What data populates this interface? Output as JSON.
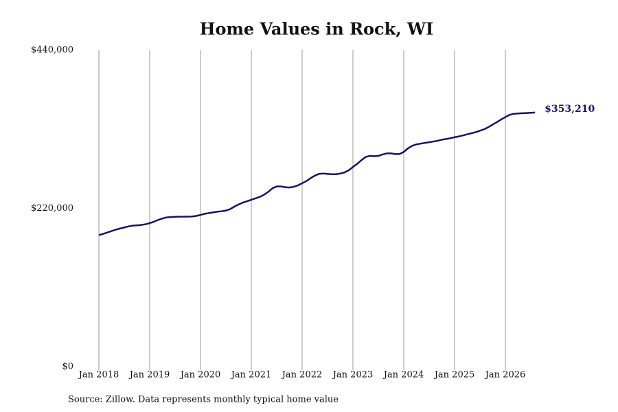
{
  "chart_data": {
    "type": "line",
    "title": "Home Values in Rock, WI",
    "source": "Source: Zillow. Data represents monthly typical home value",
    "color": "#14145e",
    "categories": [
      "Jan 2018",
      null,
      null,
      null,
      null,
      null,
      null,
      null,
      null,
      null,
      null,
      null,
      "Jan 2019",
      null,
      null,
      null,
      null,
      null,
      null,
      null,
      null,
      null,
      null,
      null,
      "Jan 2020",
      null,
      null,
      null,
      null,
      null,
      null,
      null,
      null,
      null,
      null,
      null,
      "Jan 2021",
      null,
      null,
      null,
      null,
      null,
      null,
      null,
      null,
      null,
      null,
      null,
      "Jan 2022",
      null,
      null,
      null,
      null,
      null,
      null,
      null,
      null,
      null,
      null,
      null,
      "Jan 2023",
      null,
      null,
      null,
      null,
      null,
      null,
      null,
      null,
      null,
      null,
      null,
      "Jan 2024",
      null,
      null,
      null,
      null,
      null,
      null,
      null,
      null,
      null,
      null,
      null,
      "Jan 2025",
      null,
      null,
      null,
      null,
      null,
      null,
      null,
      null,
      null,
      null,
      null,
      "Jan 2026",
      null,
      null,
      null,
      null,
      null,
      null,
      null
    ],
    "values": [
      183000,
      184500,
      186500,
      188500,
      190500,
      192000,
      193500,
      195000,
      196000,
      196500,
      197000,
      198000,
      199500,
      201500,
      204000,
      206000,
      207500,
      208000,
      208300,
      208500,
      208600,
      208600,
      208800,
      209500,
      211000,
      212500,
      213500,
      214500,
      215500,
      216000,
      217000,
      219000,
      222500,
      225500,
      228000,
      230000,
      232000,
      234000,
      236000,
      239000,
      243000,
      248000,
      250500,
      250500,
      249500,
      249000,
      250000,
      252000,
      255000,
      258000,
      262000,
      265500,
      268000,
      268500,
      268000,
      267500,
      267500,
      268500,
      270000,
      273000,
      277500,
      282000,
      287000,
      291500,
      293000,
      292500,
      293000,
      295000,
      296500,
      296500,
      295500,
      295500,
      298500,
      303500,
      307000,
      309000,
      310000,
      311000,
      312000,
      313000,
      314000,
      315500,
      316500,
      317500,
      319000,
      320000,
      321500,
      323000,
      324500,
      326000,
      328000,
      330000,
      333000,
      336500,
      340000,
      343500,
      347000,
      350000,
      351500,
      352000,
      352300,
      352600,
      352900,
      353210
    ],
    "value_labels": [
      null,
      null,
      null,
      null,
      null,
      null,
      null,
      null,
      null,
      null,
      null,
      null,
      null,
      null,
      null,
      null,
      null,
      null,
      null,
      null,
      null,
      null,
      null,
      null,
      null,
      null,
      null,
      null,
      null,
      null,
      null,
      null,
      null,
      null,
      null,
      null,
      null,
      null,
      null,
      null,
      null,
      null,
      null,
      null,
      null,
      null,
      null,
      null,
      null,
      null,
      null,
      null,
      null,
      null,
      null,
      null,
      null,
      null,
      null,
      null,
      null,
      null,
      null,
      null,
      null,
      null,
      null,
      null,
      null,
      null,
      null,
      null,
      null,
      null,
      null,
      null,
      null,
      null,
      null,
      null,
      null,
      null,
      null,
      null,
      null,
      null,
      null,
      null,
      null,
      null,
      null,
      null,
      null,
      null,
      null,
      null,
      null,
      null,
      null,
      null,
      null,
      null,
      null,
      "$353,210"
    ],
    "ylim": [
      0,
      440000
    ],
    "yticks": [
      {
        "value": 0,
        "label": "$0"
      },
      {
        "value": 220000,
        "label": "$220,000"
      },
      {
        "value": 440000,
        "label": "$440,000"
      }
    ],
    "grid": true
  }
}
